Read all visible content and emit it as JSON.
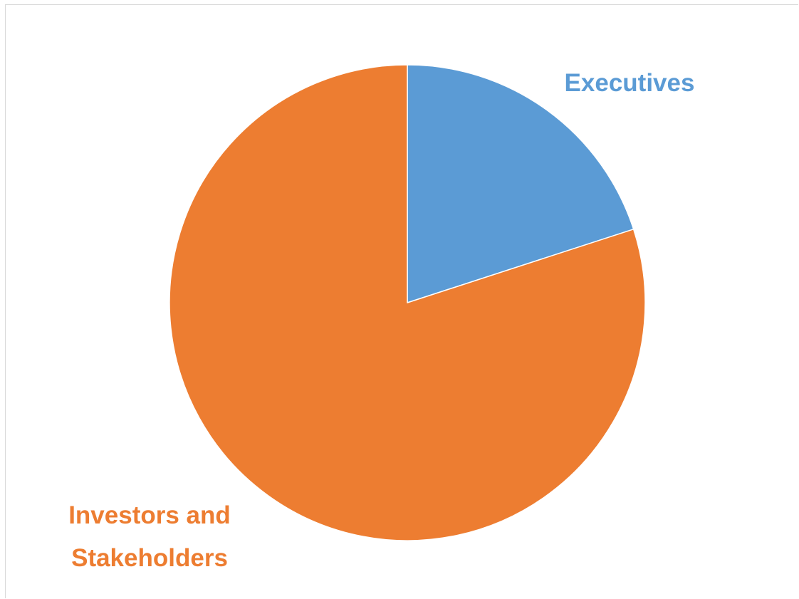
{
  "chart_data": {
    "type": "pie",
    "title": "",
    "categories": [
      "Executives",
      "Investors and Stakeholders"
    ],
    "values": [
      20,
      80
    ],
    "colors": [
      "#5B9BD5",
      "#ED7D31"
    ],
    "start_angle_deg": 0,
    "direction": "clockwise",
    "legend": "none",
    "labels": [
      {
        "lines": [
          "Executives"
        ],
        "color": "#5B9BD5"
      },
      {
        "lines": [
          "Investors and",
          "Stakeholders"
        ],
        "color": "#ED7D31"
      }
    ]
  }
}
